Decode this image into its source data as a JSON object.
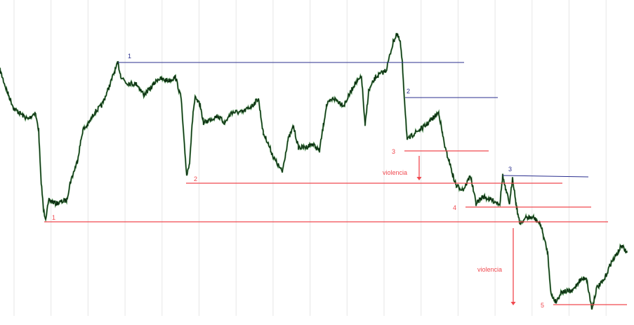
{
  "chart_data": {
    "type": "line",
    "title": "",
    "xlabel": "",
    "ylabel": "",
    "grid": "vertical",
    "xlim": [
      0,
      903
    ],
    "ylim": [
      0,
      463
    ],
    "colors": {
      "price": "#0b2a10",
      "price_highlight": "#2e7d32",
      "resistance": "#2b2f8f",
      "support": "#f0494f",
      "grid": "#e6e6e6"
    },
    "price": {
      "x": [
        0,
        10,
        20,
        40,
        50,
        55,
        58,
        62,
        65,
        70,
        80,
        95,
        100,
        110,
        118,
        125,
        135,
        145,
        155,
        162,
        168,
        172,
        180,
        195,
        205,
        215,
        225,
        240,
        250,
        258,
        262,
        266,
        270,
        275,
        278,
        285,
        290,
        300,
        310,
        320,
        330,
        345,
        360,
        368,
        375,
        380,
        390,
        402,
        410,
        418,
        425,
        435,
        445,
        455,
        465,
        475,
        490,
        505,
        515,
        520,
        525,
        535,
        550,
        560,
        565,
        570,
        573,
        576,
        580,
        590,
        605,
        615,
        625,
        630,
        635,
        640,
        645,
        650,
        660,
        670,
        678,
        688,
        700,
        712,
        716,
        720,
        726,
        730,
        735,
        740,
        750,
        760,
        770,
        780,
        785,
        792,
        800,
        815,
        825,
        835,
        843,
        850,
        860,
        870,
        880,
        885,
        893
      ],
      "y": [
        363,
        333,
        308,
        293,
        303,
        278,
        213,
        163,
        153,
        178,
        173,
        178,
        203,
        233,
        278,
        285,
        303,
        313,
        338,
        358,
        373,
        355,
        345,
        343,
        328,
        338,
        351,
        348,
        353,
        323,
        263,
        213,
        233,
        303,
        323,
        313,
        288,
        293,
        298,
        288,
        303,
        303,
        313,
        323,
        273,
        263,
        238,
        218,
        263,
        283,
        253,
        253,
        258,
        248,
        313,
        323,
        313,
        343,
        353,
        283,
        333,
        353,
        363,
        403,
        415,
        403,
        373,
        323,
        263,
        273,
        283,
        293,
        303,
        273,
        248,
        233,
        213,
        198,
        193,
        213,
        173,
        183,
        178,
        173,
        213,
        193,
        173,
        211,
        173,
        145,
        153,
        153,
        143,
        103,
        43,
        33,
        48,
        48,
        63,
        68,
        23,
        53,
        63,
        88,
        103,
        113,
        103
      ]
    },
    "resistance_levels": [
      {
        "label": "1",
        "price": 374,
        "x_start": 168,
        "x_end": 661
      },
      {
        "label": "2",
        "price": 324,
        "x_start": 577,
        "x_end": 709
      },
      {
        "label": "3",
        "price": 213,
        "price_end": 211,
        "x_start": 716,
        "x_end": 838
      }
    ],
    "support_levels": [
      {
        "label": "1",
        "price": 147,
        "x_start": 63,
        "x_end": 866
      },
      {
        "label": "2",
        "price": 202,
        "x_start": 265,
        "x_end": 801
      },
      {
        "label": "3",
        "price": 248,
        "x_start": 576,
        "x_end": 696
      },
      {
        "label": "4",
        "price": 168,
        "x_start": 663,
        "x_end": 842
      },
      {
        "label": "5",
        "price": 29,
        "x_start": 788,
        "x_end": 893
      }
    ],
    "annotations": [
      {
        "text": "violencia",
        "arrow_x": 597,
        "arrow_from": 241,
        "arrow_to": 206
      },
      {
        "text": "violencia",
        "arrow_x": 731,
        "arrow_from": 138,
        "arrow_to": 28
      }
    ]
  }
}
